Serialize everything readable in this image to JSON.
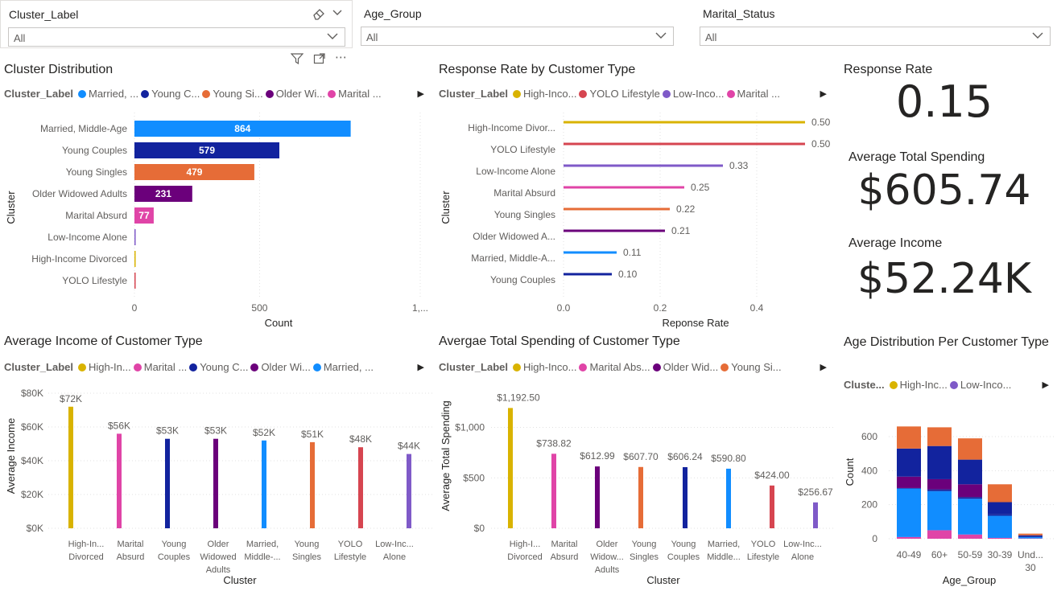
{
  "slicers": [
    {
      "title": "Cluster_Label",
      "value": "All"
    },
    {
      "title": "Age_Group",
      "value": "All"
    },
    {
      "title": "Marital_Status",
      "value": "All"
    }
  ],
  "cards": {
    "response_rate": {
      "label": "Response Rate",
      "value": "0.15"
    },
    "avg_spending": {
      "label": "Average Total Spending",
      "value": "$605.74"
    },
    "avg_income": {
      "label": "Average Income",
      "value": "$52.24K"
    }
  },
  "colors": {
    "High-Income Divorced": "#D9B300",
    "YOLO Lifestyle": "#D64550",
    "Low-Income Alone": "#7F5AC8",
    "Marital Absurd": "#E044A7",
    "Young Singles": "#E66C37",
    "Older Widowed Adults": "#6B007B",
    "Married, Middle-Age": "#118DFF",
    "Young Couples": "#12239E"
  },
  "chart_data": [
    {
      "id": "cluster_distribution",
      "type": "bar",
      "title": "Cluster Distribution",
      "legend_title": "Cluster_Label",
      "legend": [
        "Married, ...",
        "Young C...",
        "Young Si...",
        "Older Wi...",
        "Marital ..."
      ],
      "legend_keys": [
        "Married, Middle-Age",
        "Young Couples",
        "Young Singles",
        "Older Widowed Adults",
        "Marital Absurd"
      ],
      "categories": [
        "Married, Middle-Age",
        "Young Couples",
        "Young Singles",
        "Older Widowed Adults",
        "Marital Absurd",
        "Low-Income Alone",
        "High-Income Divorced",
        "YOLO Lifestyle"
      ],
      "values": [
        864,
        579,
        479,
        231,
        77,
        4,
        3,
        2
      ],
      "data_labels": [
        "864",
        "579",
        "479",
        "231",
        "77",
        "",
        "",
        ""
      ],
      "xlabel": "Count",
      "ylabel": "Cluster",
      "xticks": [
        "0",
        "500",
        "1,..."
      ],
      "xlim": [
        0,
        1000
      ]
    },
    {
      "id": "response_rate",
      "type": "bar",
      "title": "Response Rate by Customer Type",
      "legend_title": "Cluster_Label",
      "legend": [
        "High-Inco...",
        "YOLO Lifestyle",
        "Low-Inco...",
        "Marital ..."
      ],
      "legend_keys": [
        "High-Income Divorced",
        "YOLO Lifestyle",
        "Low-Income Alone",
        "Marital Absurd"
      ],
      "categories": [
        "High-Income Divor...",
        "YOLO Lifestyle",
        "Low-Income Alone",
        "Marital Absurd",
        "Young Singles",
        "Older Widowed A...",
        "Married, Middle-A...",
        "Young Couples"
      ],
      "category_keys": [
        "High-Income Divorced",
        "YOLO Lifestyle",
        "Low-Income Alone",
        "Marital Absurd",
        "Young Singles",
        "Older Widowed Adults",
        "Married, Middle-Age",
        "Young Couples"
      ],
      "values": [
        0.5,
        0.5,
        0.33,
        0.25,
        0.22,
        0.21,
        0.11,
        0.1
      ],
      "data_labels": [
        "0.50",
        "0.50",
        "0.33",
        "0.25",
        "0.22",
        "0.21",
        "0.11",
        "0.10"
      ],
      "xlabel": "Reponse Rate",
      "ylabel": "Cluster",
      "xticks": [
        "0.0",
        "0.2",
        "0.4"
      ],
      "xlim": [
        0,
        0.5
      ]
    },
    {
      "id": "avg_income",
      "type": "bar",
      "title": "Average Income of Customer Type",
      "legend_title": "Cluster_Label",
      "legend": [
        "High-In...",
        "Marital ...",
        "Young C...",
        "Older Wi...",
        "Married, ..."
      ],
      "legend_keys": [
        "High-Income Divorced",
        "Marital Absurd",
        "Young Couples",
        "Older Widowed Adults",
        "Married, Middle-Age"
      ],
      "categories": [
        [
          "High-In...",
          "Divorced"
        ],
        [
          "Marital",
          "Absurd"
        ],
        [
          "Young",
          "Couples"
        ],
        [
          "Older",
          "Widowed",
          "Adults"
        ],
        [
          "Married,",
          "Middle-..."
        ],
        [
          "Young",
          "Singles"
        ],
        [
          "YOLO",
          "Lifestyle"
        ],
        [
          "Low-Inc...",
          "Alone"
        ]
      ],
      "category_keys": [
        "High-Income Divorced",
        "Marital Absurd",
        "Young Couples",
        "Older Widowed Adults",
        "Married, Middle-Age",
        "Young Singles",
        "YOLO Lifestyle",
        "Low-Income Alone"
      ],
      "values": [
        72,
        56,
        53,
        53,
        52,
        51,
        48,
        44
      ],
      "data_labels": [
        "$72K",
        "$56K",
        "$53K",
        "$53K",
        "$52K",
        "$51K",
        "$48K",
        "$44K"
      ],
      "xlabel": "Cluster",
      "ylabel": "Average Income",
      "yticks": [
        "$0K",
        "$20K",
        "$40K",
        "$60K",
        "$80K"
      ],
      "ylim": [
        0,
        80
      ]
    },
    {
      "id": "avg_spending",
      "type": "bar",
      "title": "Avergae Total Spending of Customer Type",
      "legend_title": "Cluster_Label",
      "legend": [
        "High-Inco...",
        "Marital Abs...",
        "Older Wid...",
        "Young Si..."
      ],
      "legend_keys": [
        "High-Income Divorced",
        "Marital Absurd",
        "Older Widowed Adults",
        "Young Singles"
      ],
      "categories": [
        [
          "High-I...",
          "Divorced"
        ],
        [
          "Marital",
          "Absurd"
        ],
        [
          "Older",
          "Widow...",
          "Adults"
        ],
        [
          "Young",
          "Singles"
        ],
        [
          "Young",
          "Couples"
        ],
        [
          "Married,",
          "Middle..."
        ],
        [
          "YOLO",
          "Lifestyle"
        ],
        [
          "Low-Inc...",
          "Alone"
        ]
      ],
      "category_keys": [
        "High-Income Divorced",
        "Marital Absurd",
        "Older Widowed Adults",
        "Young Singles",
        "Young Couples",
        "Married, Middle-Age",
        "YOLO Lifestyle",
        "Low-Income Alone"
      ],
      "values": [
        1192.5,
        738.82,
        612.99,
        607.7,
        606.24,
        590.8,
        424.0,
        256.67
      ],
      "data_labels": [
        "$1,192.50",
        "$738.82",
        "$612.99",
        "$607.70",
        "$606.24",
        "$590.80",
        "$424.00",
        "$256.67"
      ],
      "xlabel": "Cluster",
      "ylabel": "Average Total Spending",
      "yticks": [
        "$0",
        "$500",
        "$1,000"
      ],
      "ylim": [
        0,
        1250
      ]
    },
    {
      "id": "age_distribution",
      "type": "bar",
      "stacked": true,
      "title": "Age Distribution Per Customer Type",
      "legend_title": "Cluste...",
      "legend": [
        "High-Inc...",
        "Low-Inco..."
      ],
      "legend_keys": [
        "High-Income Divorced",
        "Low-Income Alone"
      ],
      "categories": [
        "40-49",
        "60+",
        "50-59",
        "30-39",
        [
          "Und...",
          "30"
        ]
      ],
      "series": [
        {
          "key": "Marital Absurd",
          "values": [
            10,
            50,
            25,
            5,
            2
          ]
        },
        {
          "key": "Married, Middle-Age",
          "values": [
            285,
            230,
            210,
            130,
            8
          ]
        },
        {
          "key": "Young Couples",
          "values": [
            3,
            10,
            10,
            10,
            4
          ]
        },
        {
          "key": "Older Widowed Adults",
          "values": [
            67,
            60,
            75,
            0,
            0
          ]
        },
        {
          "key": "Young Couples",
          "values": [
            165,
            195,
            145,
            70,
            6
          ]
        },
        {
          "key": "Young Singles",
          "values": [
            130,
            110,
            125,
            105,
            10
          ]
        }
      ],
      "xlabel": "Age_Group",
      "ylabel": "Count",
      "yticks": [
        "0",
        "200",
        "400",
        "600"
      ],
      "ylim": [
        0,
        700
      ]
    }
  ]
}
